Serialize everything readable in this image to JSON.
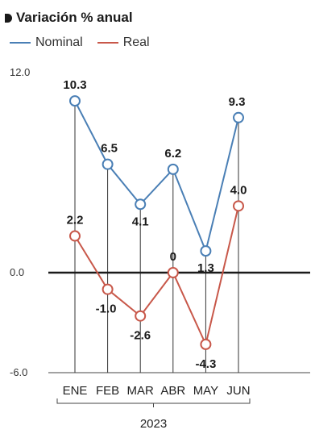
{
  "chart_data": {
    "type": "line",
    "title": "Variación % anual",
    "categories": [
      "ENE",
      "FEB",
      "MAR",
      "ABR",
      "MAY",
      "JUN"
    ],
    "x_group_label": "2023",
    "series": [
      {
        "name": "Nominal",
        "values": [
          10.3,
          6.5,
          4.1,
          6.2,
          1.3,
          9.3
        ],
        "labels": [
          "10.3",
          "6.5",
          "4.1",
          "6.2",
          "1.3",
          "9.3"
        ],
        "color": "#4a7fb5"
      },
      {
        "name": "Real",
        "values": [
          2.2,
          -1.0,
          -2.6,
          0,
          -4.3,
          4.0
        ],
        "labels": [
          "2.2",
          "-1.0",
          "-2.6",
          "0",
          "-4.3",
          "4.0"
        ],
        "color": "#c8584a"
      }
    ],
    "y_ticks": [
      "12.0",
      "0.0",
      "-6.0"
    ],
    "ylim": [
      -6,
      12
    ],
    "grid": false
  }
}
